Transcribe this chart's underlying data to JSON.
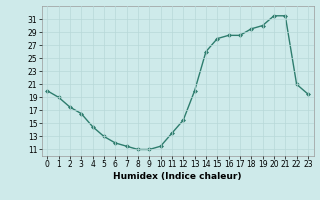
{
  "x": [
    0,
    1,
    2,
    3,
    4,
    5,
    6,
    7,
    8,
    9,
    10,
    11,
    12,
    13,
    14,
    15,
    16,
    17,
    18,
    19,
    20,
    21,
    22,
    23
  ],
  "y": [
    20,
    19,
    17.5,
    16.5,
    14.5,
    13,
    12,
    11.5,
    11,
    11,
    11.5,
    13.5,
    15.5,
    20,
    26,
    28,
    28.5,
    28.5,
    29.5,
    30,
    31.5,
    31.5,
    21,
    19.5
  ],
  "xlabel": "Humidex (Indice chaleur)",
  "ylim": [
    10,
    33
  ],
  "xlim": [
    -0.5,
    23.5
  ],
  "yticks": [
    11,
    13,
    15,
    17,
    19,
    21,
    23,
    25,
    27,
    29,
    31
  ],
  "xticks": [
    0,
    1,
    2,
    3,
    4,
    5,
    6,
    7,
    8,
    9,
    10,
    11,
    12,
    13,
    14,
    15,
    16,
    17,
    18,
    19,
    20,
    21,
    22,
    23
  ],
  "xtick_labels": [
    "0",
    "1",
    "2",
    "3",
    "4",
    "5",
    "6",
    "7",
    "8",
    "9",
    "10",
    "11",
    "12",
    "13",
    "14",
    "15",
    "16",
    "17",
    "18",
    "19",
    "20",
    "21",
    "22",
    "23"
  ],
  "line_color": "#2e7d6e",
  "bg_color": "#ceeaea",
  "grid_color": "#b8d8d8",
  "marker": "D",
  "marker_size": 2.0,
  "line_width": 1.0,
  "tick_fontsize": 5.5,
  "xlabel_fontsize": 6.5
}
